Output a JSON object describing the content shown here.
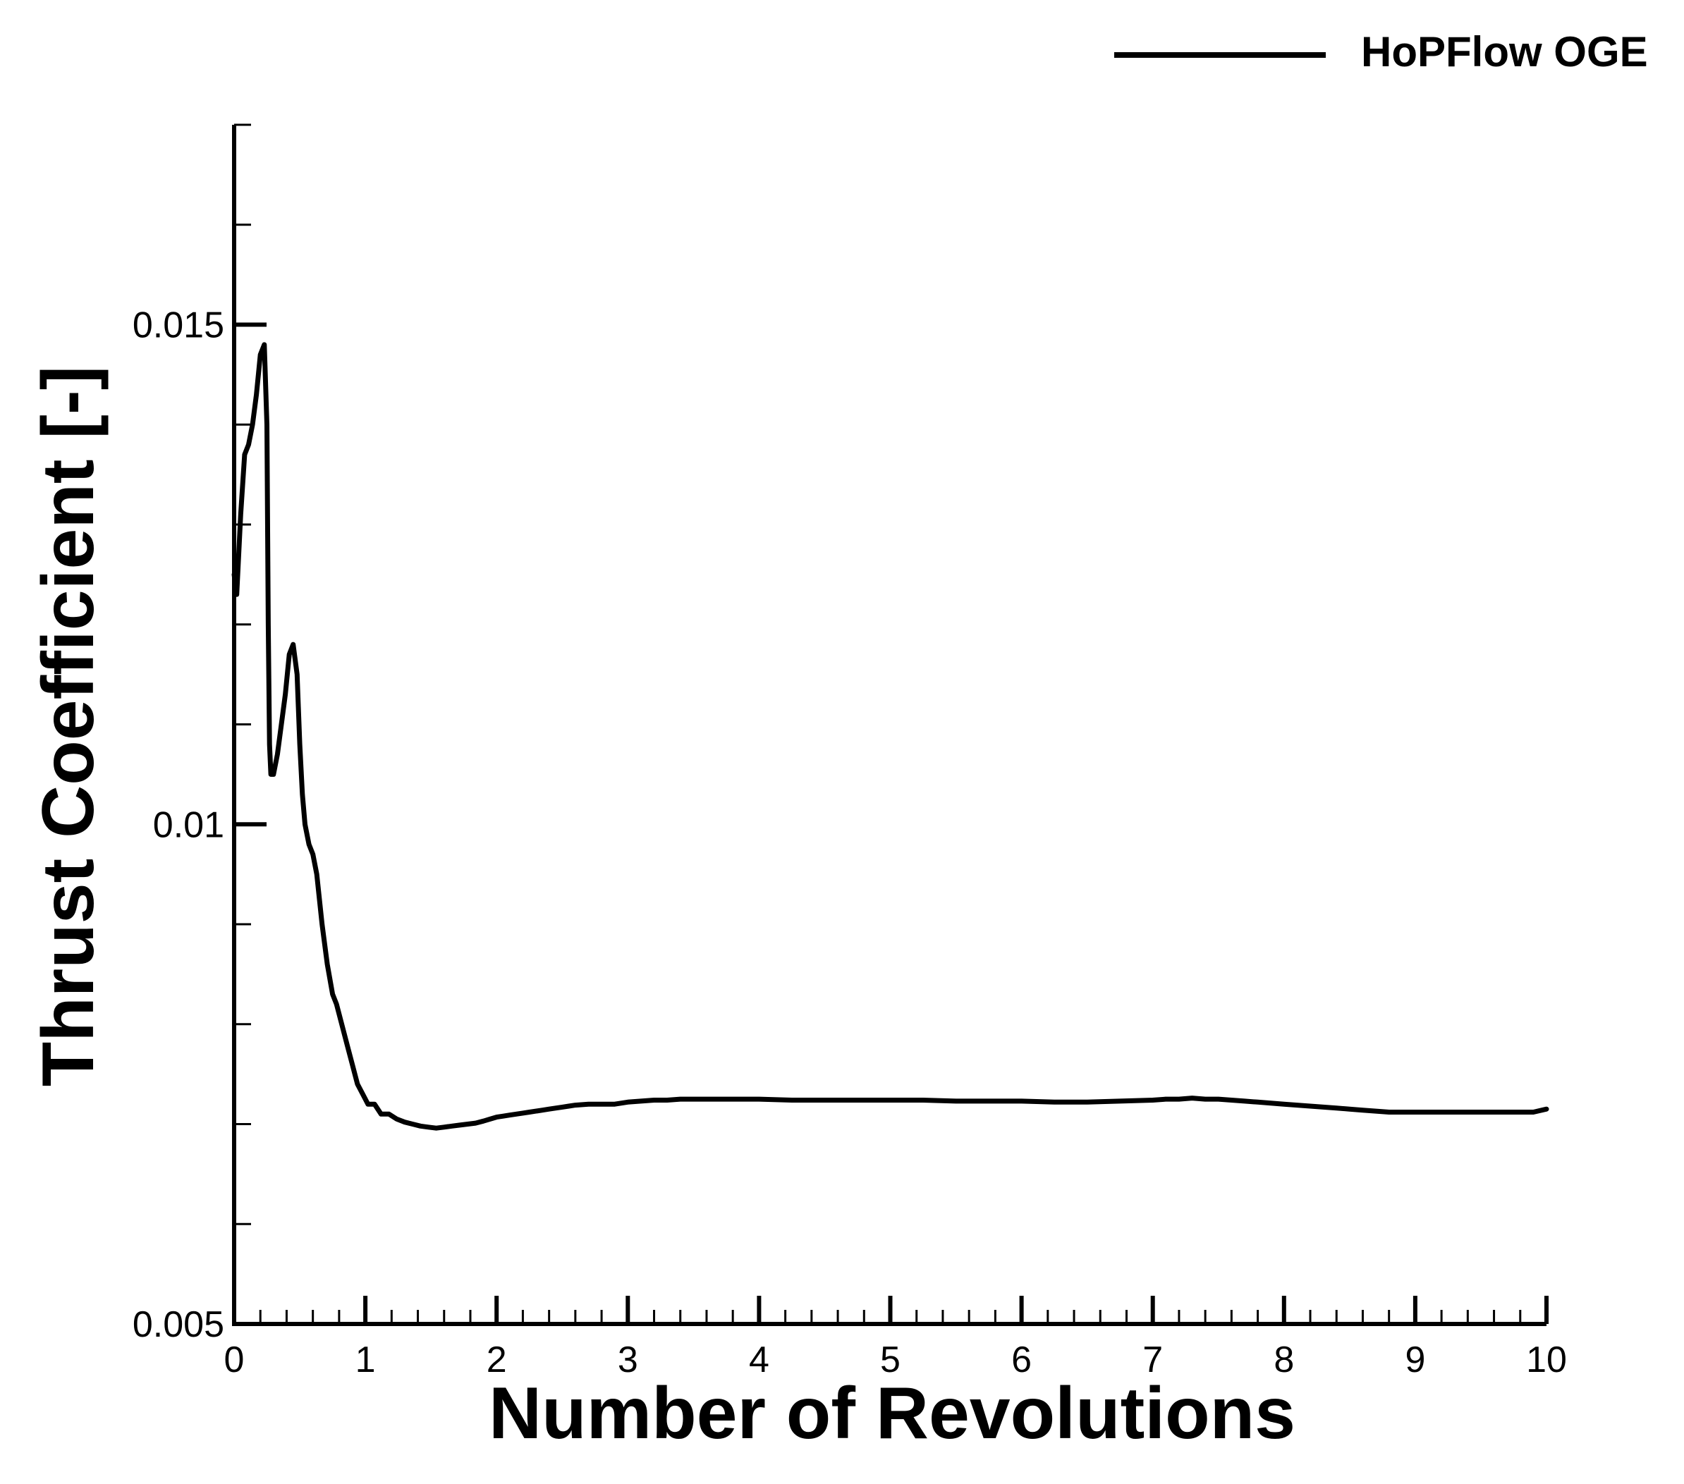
{
  "chart_data": {
    "type": "line",
    "title": "",
    "xlabel": "Number of Revolutions",
    "ylabel": "Thrust Coefficient [-]",
    "xlim": [
      0,
      10
    ],
    "ylim": [
      0.005,
      0.017
    ],
    "x_ticks": [
      0,
      1,
      2,
      3,
      4,
      5,
      6,
      7,
      8,
      9,
      10
    ],
    "x_tick_labels": [
      "0",
      "1",
      "2",
      "3",
      "4",
      "5",
      "6",
      "7",
      "8",
      "9",
      "10"
    ],
    "x_minor_step": 0.2,
    "y_ticks": [
      0.005,
      0.01,
      0.015
    ],
    "y_tick_labels": [
      "0.005",
      "0.01",
      "0.015"
    ],
    "y_minor_step": 0.001,
    "grid": false,
    "legend_position": "top-right",
    "series": [
      {
        "name": "HoPFlow OGE",
        "color": "#000000",
        "x": [
          0.0,
          0.02,
          0.05,
          0.08,
          0.11,
          0.14,
          0.17,
          0.2,
          0.23,
          0.25,
          0.26,
          0.27,
          0.28,
          0.3,
          0.33,
          0.36,
          0.39,
          0.42,
          0.45,
          0.48,
          0.5,
          0.52,
          0.54,
          0.57,
          0.6,
          0.63,
          0.67,
          0.71,
          0.75,
          0.78,
          0.82,
          0.86,
          0.9,
          0.94,
          0.98,
          1.02,
          1.07,
          1.12,
          1.18,
          1.24,
          1.3,
          1.36,
          1.42,
          1.48,
          1.54,
          1.6,
          1.66,
          1.72,
          1.78,
          1.84,
          1.9,
          1.95,
          2.0,
          2.05,
          2.1,
          2.15,
          2.2,
          2.25,
          2.3,
          2.35,
          2.4,
          2.45,
          2.5,
          2.55,
          2.6,
          2.7,
          2.8,
          2.9,
          3.0,
          3.1,
          3.2,
          3.3,
          3.4,
          3.5,
          3.6,
          3.7,
          3.8,
          3.9,
          4.0,
          4.25,
          4.5,
          4.75,
          5.0,
          5.25,
          5.5,
          5.75,
          6.0,
          6.25,
          6.5,
          6.75,
          7.0,
          7.1,
          7.2,
          7.3,
          7.4,
          7.5,
          7.6,
          7.7,
          7.8,
          7.9,
          8.0,
          8.1,
          8.2,
          8.3,
          8.4,
          8.5,
          8.6,
          8.7,
          8.8,
          8.9,
          9.0,
          9.1,
          9.2,
          9.3,
          9.4,
          9.5,
          9.6,
          9.7,
          9.8,
          9.9,
          10.0
        ],
        "y": [
          0.0125,
          0.0123,
          0.0131,
          0.0137,
          0.0138,
          0.014,
          0.0143,
          0.0147,
          0.0148,
          0.014,
          0.012,
          0.0108,
          0.0105,
          0.0105,
          0.0107,
          0.011,
          0.0113,
          0.0117,
          0.0118,
          0.0115,
          0.0108,
          0.0103,
          0.01,
          0.0098,
          0.0097,
          0.0095,
          0.009,
          0.0086,
          0.0083,
          0.0082,
          0.008,
          0.0078,
          0.0076,
          0.0074,
          0.0073,
          0.0072,
          0.0072,
          0.0071,
          0.0071,
          0.00705,
          0.00702,
          0.007,
          0.00698,
          0.00697,
          0.00696,
          0.00697,
          0.00698,
          0.00699,
          0.007,
          0.00701,
          0.00703,
          0.00705,
          0.00707,
          0.00708,
          0.00709,
          0.0071,
          0.00711,
          0.00712,
          0.00713,
          0.00714,
          0.00715,
          0.00716,
          0.00717,
          0.00718,
          0.00719,
          0.0072,
          0.0072,
          0.0072,
          0.00722,
          0.00723,
          0.00724,
          0.00724,
          0.00725,
          0.00725,
          0.00725,
          0.00725,
          0.00725,
          0.00725,
          0.00725,
          0.00724,
          0.00724,
          0.00724,
          0.00724,
          0.00724,
          0.00723,
          0.00723,
          0.00723,
          0.00722,
          0.00722,
          0.00723,
          0.00724,
          0.00725,
          0.00725,
          0.00726,
          0.00725,
          0.00725,
          0.00724,
          0.00723,
          0.00722,
          0.00721,
          0.0072,
          0.00719,
          0.00718,
          0.00717,
          0.00716,
          0.00715,
          0.00714,
          0.00713,
          0.00712,
          0.00712,
          0.00712,
          0.00712,
          0.00712,
          0.00712,
          0.00712,
          0.00712,
          0.00712,
          0.00712,
          0.00712,
          0.00712,
          0.00715
        ]
      }
    ]
  }
}
